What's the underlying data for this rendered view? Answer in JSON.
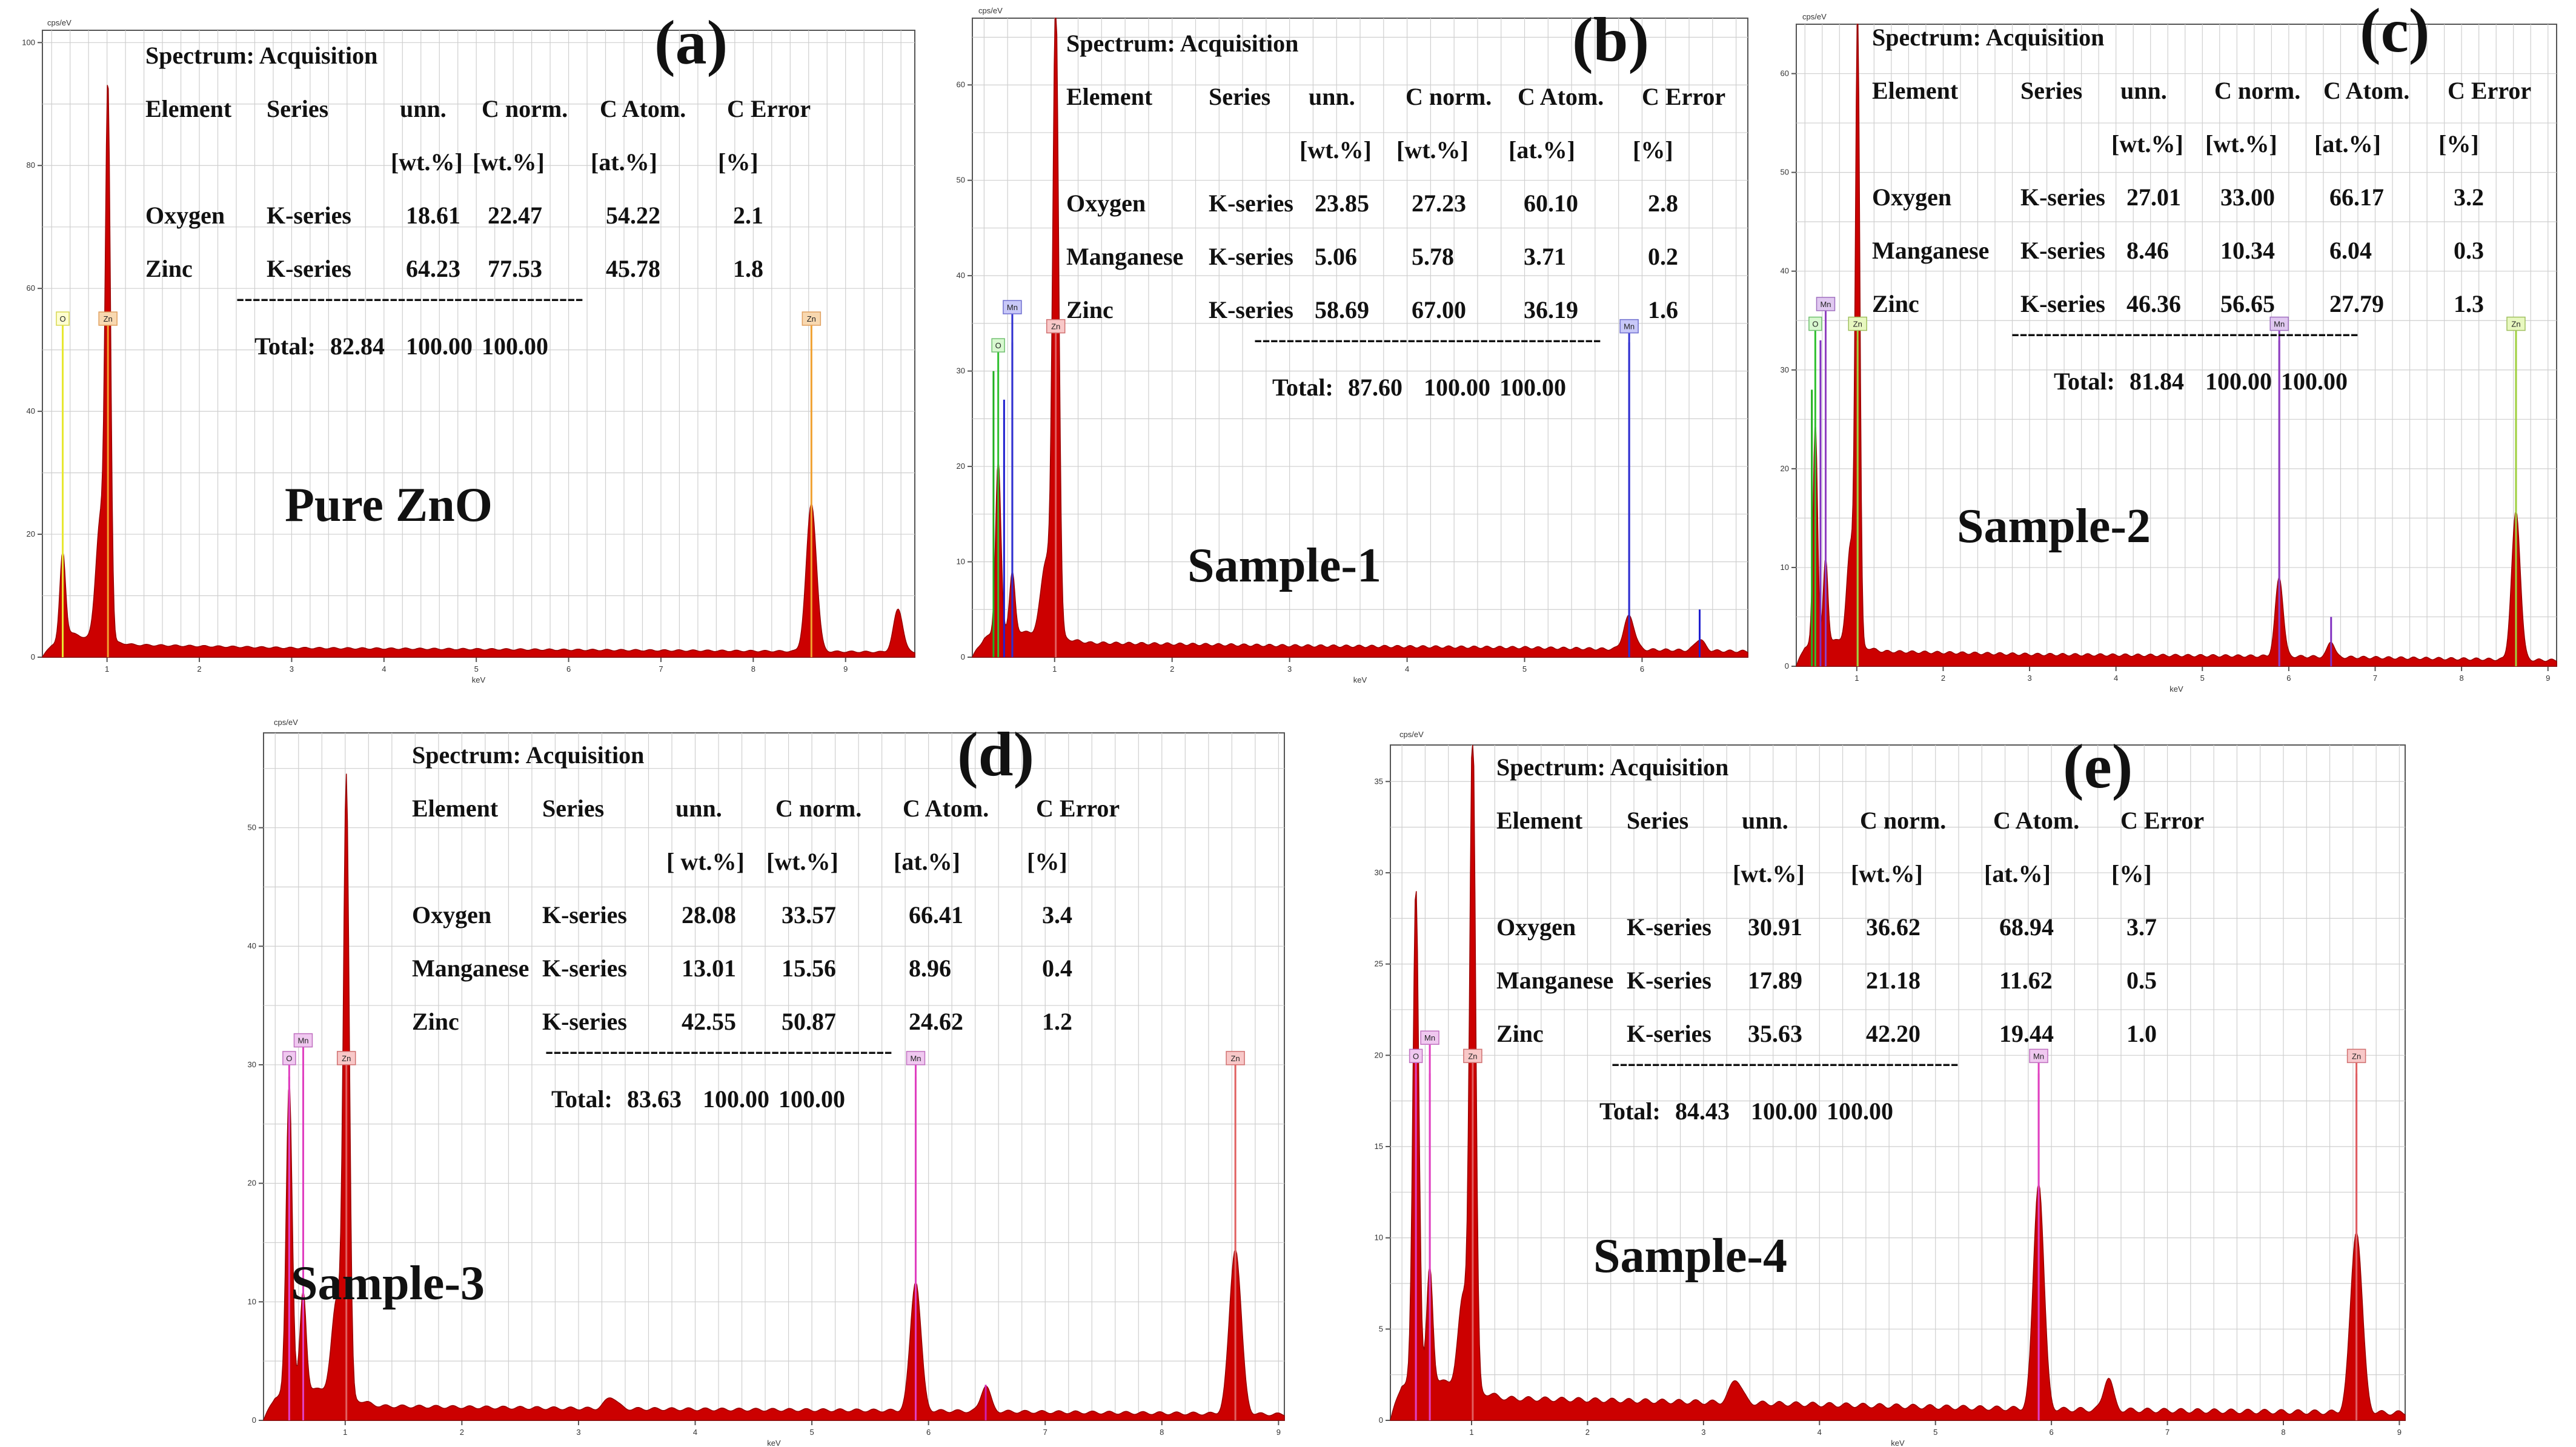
{
  "chart_data": [
    {
      "id": "a",
      "type": "line",
      "panel_label": "(a)",
      "sample_name": "Pure ZnO",
      "y_unit": "cps/eV",
      "xlabel": "keV",
      "xlim": [
        0.3,
        9.75
      ],
      "ylim": [
        0,
        102
      ],
      "x_ticks": [
        1,
        2,
        3,
        4,
        5,
        6,
        7,
        8,
        9
      ],
      "y_ticks": [
        0,
        20,
        40,
        60,
        80,
        100
      ],
      "table": {
        "title": "Spectrum: Acquisition",
        "headers": [
          "Element",
          "Series",
          "unn.",
          "C norm.",
          "C Atom.",
          "C Error"
        ],
        "units": [
          "[wt.%]",
          "[wt.%]",
          "[at.%]",
          "[%]"
        ],
        "rows": [
          [
            "Oxygen",
            "K-series",
            "18.61",
            "22.47",
            "54.22",
            "2.1"
          ],
          [
            "Zinc",
            "K-series",
            "64.23",
            "77.53",
            "45.78",
            "1.8"
          ]
        ],
        "separator": "-------------------------------------------",
        "total_label": "Total:",
        "total_values": [
          "82.84",
          "100.00",
          "100.00"
        ]
      },
      "peaks": [
        {
          "x": 0.52,
          "h": 14,
          "w": 0.03
        },
        {
          "x": 0.93,
          "h": 20,
          "w": 0.05
        },
        {
          "x": 1.01,
          "h": 86,
          "w": 0.028
        },
        {
          "x": 8.63,
          "h": 24,
          "w": 0.055
        },
        {
          "x": 9.57,
          "h": 7,
          "w": 0.05
        }
      ],
      "background": [
        [
          0.3,
          0
        ],
        [
          0.4,
          2
        ],
        [
          0.6,
          4
        ],
        [
          0.8,
          3
        ],
        [
          1.3,
          2
        ],
        [
          3,
          1.5
        ],
        [
          6,
          1.2
        ],
        [
          8,
          1.0
        ],
        [
          9.75,
          0.8
        ]
      ],
      "element_markers": [
        {
          "label": "O",
          "x": 0.52,
          "h": 54,
          "color": "#e8e830",
          "tag_bg": "#ffffd0",
          "tag_border": "#d8d850"
        },
        {
          "label": "Zn",
          "x": 1.01,
          "h": 54,
          "color": "#f0a030",
          "tag_bg": "#f8d8b0",
          "tag_border": "#e0a060"
        },
        {
          "label": "Zn",
          "x": 8.63,
          "h": 54,
          "color": "#f0a030",
          "tag_bg": "#f8d8b0",
          "tag_border": "#e0a060"
        }
      ],
      "lines": []
    },
    {
      "id": "b",
      "type": "line",
      "panel_label": "(b)",
      "sample_name": "Sample-1",
      "y_unit": "cps/eV",
      "xlabel": "keV",
      "xlim": [
        0.3,
        6.9
      ],
      "ylim": [
        0,
        67
      ],
      "x_ticks": [
        1,
        2,
        3,
        4,
        5,
        6
      ],
      "y_ticks": [
        0,
        10,
        20,
        30,
        40,
        50,
        60
      ],
      "table": {
        "title": "Spectrum: Acquisition",
        "headers": [
          "Element",
          "Series",
          "unn.",
          "C norm.",
          "C Atom.",
          "C Error"
        ],
        "units": [
          "[wt.%]",
          "[wt.%]",
          "[at.%]",
          "[%]"
        ],
        "rows": [
          [
            "Oxygen",
            "K-series",
            "23.85",
            "27.23",
            "60.10",
            "2.8"
          ],
          [
            "Manganese",
            "K-series",
            "5.06",
            "5.78",
            "3.71",
            "0.2"
          ],
          [
            "Zinc",
            "K-series",
            "58.69",
            "67.00",
            "36.19",
            "1.6"
          ]
        ],
        "separator": "-------------------------------------------",
        "total_label": "Total:",
        "total_values": [
          "87.60",
          "100.00",
          "100.00"
        ]
      },
      "peaks": [
        {
          "x": 0.52,
          "h": 18,
          "w": 0.022
        },
        {
          "x": 0.64,
          "h": 6,
          "w": 0.022
        },
        {
          "x": 0.93,
          "h": 8,
          "w": 0.045
        },
        {
          "x": 1.01,
          "h": 66,
          "w": 0.025
        },
        {
          "x": 5.89,
          "h": 3.5,
          "w": 0.045
        },
        {
          "x": 6.49,
          "h": 1.2,
          "w": 0.04
        }
      ],
      "background": [
        [
          0.3,
          0
        ],
        [
          0.4,
          2
        ],
        [
          0.6,
          3
        ],
        [
          0.8,
          2.5
        ],
        [
          1.3,
          1.5
        ],
        [
          3,
          1.2
        ],
        [
          5,
          1.0
        ],
        [
          6.9,
          0.6
        ]
      ],
      "element_markers": [
        {
          "label": "O",
          "x": 0.52,
          "h": 32,
          "color": "#30c030",
          "tag_bg": "#d8f8d0",
          "tag_border": "#70c070"
        },
        {
          "label": "Mn",
          "x": 0.64,
          "h": 36,
          "color": "#3030d0",
          "tag_bg": "#c8c8f8",
          "tag_border": "#7070d0"
        },
        {
          "label": "Zn",
          "x": 1.01,
          "h": 34,
          "color": "#e06060",
          "tag_bg": "#f8c8c8",
          "tag_border": "#d07070"
        },
        {
          "label": "Mn",
          "x": 5.89,
          "h": 34,
          "color": "#3030d0",
          "tag_bg": "#c8c8f8",
          "tag_border": "#7070d0"
        }
      ],
      "lines": [
        {
          "x": 0.57,
          "h": 27,
          "color": "#2020d0"
        },
        {
          "x": 0.48,
          "h": 30,
          "color": "#20b020"
        },
        {
          "x": 0.64,
          "h": 33,
          "color": "#2020d0"
        },
        {
          "x": 5.89,
          "h": 33,
          "color": "#2020d0"
        },
        {
          "x": 6.49,
          "h": 5,
          "color": "#2020d0"
        }
      ]
    },
    {
      "id": "c",
      "type": "line",
      "panel_label": "(c)",
      "sample_name": "Sample-2",
      "y_unit": "cps/eV",
      "xlabel": "keV",
      "xlim": [
        0.3,
        9.1
      ],
      "ylim": [
        0,
        65
      ],
      "x_ticks": [
        1,
        2,
        3,
        4,
        5,
        6,
        7,
        8,
        9
      ],
      "y_ticks": [
        0,
        10,
        20,
        30,
        40,
        50,
        60
      ],
      "table": {
        "title": "Spectrum: Acquisition",
        "headers": [
          "Element",
          "Series",
          "unn.",
          "C norm.",
          "C Atom.",
          "C Error"
        ],
        "units": [
          "[wt.%]",
          "[wt.%]",
          "[at.%]",
          "[%]"
        ],
        "rows": [
          [
            "Oxygen",
            "K-series",
            "27.01",
            "33.00",
            "66.17",
            "3.2"
          ],
          [
            "Manganese",
            "K-series",
            "8.46",
            "10.34",
            "6.04",
            "0.3"
          ],
          [
            "Zinc",
            "K-series",
            "46.36",
            "56.65",
            "27.79",
            "1.3"
          ]
        ],
        "separator": "-------------------------------------------",
        "total_label": "Total:",
        "total_values": [
          "81.84",
          "100.00",
          "100.00"
        ]
      },
      "peaks": [
        {
          "x": 0.52,
          "h": 22,
          "w": 0.025
        },
        {
          "x": 0.64,
          "h": 8,
          "w": 0.025
        },
        {
          "x": 0.93,
          "h": 10,
          "w": 0.045
        },
        {
          "x": 1.01,
          "h": 63,
          "w": 0.025
        },
        {
          "x": 5.89,
          "h": 8,
          "w": 0.045
        },
        {
          "x": 6.49,
          "h": 1.6,
          "w": 0.04
        },
        {
          "x": 8.63,
          "h": 15,
          "w": 0.05
        }
      ],
      "background": [
        [
          0.3,
          0
        ],
        [
          0.4,
          2
        ],
        [
          0.6,
          3
        ],
        [
          0.8,
          2.5
        ],
        [
          1.3,
          1.5
        ],
        [
          3,
          1.2
        ],
        [
          6,
          1.0
        ],
        [
          9.1,
          0.6
        ]
      ],
      "element_markers": [
        {
          "label": "O",
          "x": 0.52,
          "h": 34,
          "color": "#30c030",
          "tag_bg": "#d8f8d0",
          "tag_border": "#70c070"
        },
        {
          "label": "Mn",
          "x": 0.64,
          "h": 36,
          "color": "#9040c0",
          "tag_bg": "#e0c8f0",
          "tag_border": "#a070c0"
        },
        {
          "label": "Zn",
          "x": 1.01,
          "h": 34,
          "color": "#a0d040",
          "tag_bg": "#e8f8c0",
          "tag_border": "#a0c060"
        },
        {
          "label": "Mn",
          "x": 5.89,
          "h": 34,
          "color": "#9040c0",
          "tag_bg": "#e0c8f0",
          "tag_border": "#a070c0"
        },
        {
          "label": "Zn",
          "x": 8.63,
          "h": 34,
          "color": "#a0d040",
          "tag_bg": "#e8f8c0",
          "tag_border": "#a0c060"
        }
      ],
      "lines": [
        {
          "x": 0.48,
          "h": 28,
          "color": "#20b020"
        },
        {
          "x": 0.58,
          "h": 33,
          "color": "#8030c0"
        },
        {
          "x": 0.64,
          "h": 26,
          "color": "#8030c0"
        },
        {
          "x": 1.01,
          "h": 33,
          "color": "#90c030"
        },
        {
          "x": 5.89,
          "h": 33,
          "color": "#8030c0"
        },
        {
          "x": 6.49,
          "h": 5,
          "color": "#8030c0"
        },
        {
          "x": 8.63,
          "h": 33,
          "color": "#90c030"
        }
      ]
    },
    {
      "id": "d",
      "type": "line",
      "panel_label": "(d)",
      "sample_name": "Sample-3",
      "y_unit": "cps/eV",
      "xlabel": "keV",
      "xlim": [
        0.3,
        9.05
      ],
      "ylim": [
        0,
        58
      ],
      "x_ticks": [
        1,
        2,
        3,
        4,
        5,
        6,
        7,
        8,
        9
      ],
      "y_ticks": [
        0,
        10,
        20,
        30,
        40,
        50
      ],
      "table": {
        "title": "Spectrum: Acquisition",
        "headers": [
          "Element",
          "Series",
          "unn.",
          "C norm.",
          "C Atom.",
          "C Error"
        ],
        "units": [
          "[ wt.%]",
          "[wt.%]",
          "[at.%]",
          "[%]"
        ],
        "rows": [
          [
            "Oxygen",
            "K-series",
            "28.08",
            "33.57",
            "66.41",
            "3.4"
          ],
          [
            "Manganese",
            "K-series",
            "13.01",
            "15.56",
            "8.96",
            "0.4"
          ],
          [
            "Zinc",
            "K-series",
            "42.55",
            "50.87",
            "24.62",
            "1.2"
          ]
        ],
        "separator": "-------------------------------------------",
        "total_label": "Total:",
        "total_values": [
          "83.63",
          "100.00",
          "100.00"
        ]
      },
      "peaks": [
        {
          "x": 0.52,
          "h": 26,
          "w": 0.025
        },
        {
          "x": 0.64,
          "h": 8,
          "w": 0.025
        },
        {
          "x": 0.93,
          "h": 8,
          "w": 0.045
        },
        {
          "x": 1.01,
          "h": 51,
          "w": 0.025
        },
        {
          "x": 3.28,
          "h": 1.0,
          "w": 0.05
        },
        {
          "x": 5.89,
          "h": 11,
          "w": 0.045
        },
        {
          "x": 6.49,
          "h": 2.2,
          "w": 0.04
        },
        {
          "x": 8.63,
          "h": 14,
          "w": 0.05
        }
      ],
      "background": [
        [
          0.3,
          0
        ],
        [
          0.4,
          2
        ],
        [
          0.6,
          3
        ],
        [
          0.8,
          2.5
        ],
        [
          1.3,
          1.2
        ],
        [
          3,
          1.0
        ],
        [
          6,
          0.8
        ],
        [
          9.05,
          0.5
        ]
      ],
      "element_markers": [
        {
          "label": "O",
          "x": 0.52,
          "h": 30,
          "color": "#e040c0",
          "tag_bg": "#f0c8f0",
          "tag_border": "#c070c0"
        },
        {
          "label": "Mn",
          "x": 0.64,
          "h": 31.5,
          "color": "#e040c0",
          "tag_bg": "#f0c8f0",
          "tag_border": "#c070c0"
        },
        {
          "label": "Zn",
          "x": 1.01,
          "h": 30,
          "color": "#e06060",
          "tag_bg": "#f8c8c8",
          "tag_border": "#d07070"
        },
        {
          "label": "Mn",
          "x": 5.89,
          "h": 30,
          "color": "#e040c0",
          "tag_bg": "#f0c8f0",
          "tag_border": "#c070c0"
        },
        {
          "label": "Zn",
          "x": 8.63,
          "h": 30,
          "color": "#e06060",
          "tag_bg": "#f8c8c8",
          "tag_border": "#d07070"
        }
      ],
      "lines": [
        {
          "x": 0.52,
          "h": 29,
          "color": "#d020b0"
        },
        {
          "x": 0.64,
          "h": 29,
          "color": "#d020b0"
        },
        {
          "x": 5.89,
          "h": 29,
          "color": "#d020b0"
        },
        {
          "x": 6.49,
          "h": 3,
          "color": "#d020b0"
        }
      ]
    },
    {
      "id": "e",
      "type": "line",
      "panel_label": "(e)",
      "sample_name": "Sample-4",
      "y_unit": "cps/eV",
      "xlabel": "keV",
      "xlim": [
        0.3,
        9.05
      ],
      "ylim": [
        0,
        37
      ],
      "x_ticks": [
        1,
        2,
        3,
        4,
        5,
        6,
        7,
        8,
        9
      ],
      "y_ticks": [
        0,
        5,
        10,
        15,
        20,
        25,
        30,
        35
      ],
      "table": {
        "title": "Spectrum: Acquisition",
        "headers": [
          "Element",
          "Series",
          "unn.",
          "C norm.",
          "C Atom.",
          "C Error"
        ],
        "units": [
          "[wt.%]",
          "[wt.%]",
          "[at.%]",
          "[%]"
        ],
        "rows": [
          [
            "Oxygen",
            "K-series",
            "30.91",
            "36.62",
            "68.94",
            "3.7"
          ],
          [
            "Manganese",
            "K-series",
            "17.89",
            "21.18",
            "11.62",
            "0.5"
          ],
          [
            "Zinc",
            "K-series",
            "35.63",
            "42.20",
            "19.44",
            "1.0"
          ]
        ],
        "separator": "-------------------------------------------",
        "total_label": "Total:",
        "total_values": [
          "84.43",
          "100.00",
          "100.00"
        ]
      },
      "peaks": [
        {
          "x": 0.52,
          "h": 27,
          "w": 0.025
        },
        {
          "x": 0.64,
          "h": 6,
          "w": 0.025
        },
        {
          "x": 0.93,
          "h": 5,
          "w": 0.045
        },
        {
          "x": 1.01,
          "h": 36,
          "w": 0.025
        },
        {
          "x": 3.28,
          "h": 1.3,
          "w": 0.05
        },
        {
          "x": 5.89,
          "h": 12.5,
          "w": 0.045
        },
        {
          "x": 6.49,
          "h": 1.8,
          "w": 0.04
        },
        {
          "x": 8.63,
          "h": 10,
          "w": 0.05
        }
      ],
      "background": [
        [
          0.3,
          0
        ],
        [
          0.4,
          2
        ],
        [
          0.6,
          2.5
        ],
        [
          0.8,
          2
        ],
        [
          1.3,
          1.2
        ],
        [
          3,
          1.0
        ],
        [
          6,
          0.6
        ],
        [
          9.05,
          0.4
        ]
      ],
      "element_markers": [
        {
          "label": "O",
          "x": 0.52,
          "h": 19.6,
          "color": "#e040c0",
          "tag_bg": "#f0c8f0",
          "tag_border": "#c070c0"
        },
        {
          "label": "Mn",
          "x": 0.64,
          "h": 20.6,
          "color": "#e040c0",
          "tag_bg": "#f0c8f0",
          "tag_border": "#c070c0"
        },
        {
          "label": "Zn",
          "x": 1.01,
          "h": 19.6,
          "color": "#e06060",
          "tag_bg": "#f8c8c8",
          "tag_border": "#d07070"
        },
        {
          "label": "Mn",
          "x": 5.89,
          "h": 19.6,
          "color": "#e040c0",
          "tag_bg": "#f0c8f0",
          "tag_border": "#c070c0"
        },
        {
          "label": "Zn",
          "x": 8.63,
          "h": 19.6,
          "color": "#e06060",
          "tag_bg": "#f8c8c8",
          "tag_border": "#d07070"
        }
      ],
      "lines": [
        {
          "x": 0.52,
          "h": 19,
          "color": "#d020b0"
        },
        {
          "x": 0.64,
          "h": 19,
          "color": "#d020b0"
        },
        {
          "x": 5.89,
          "h": 19,
          "color": "#d020b0"
        },
        {
          "x": 8.63,
          "h": 19,
          "color": "#d020b0"
        }
      ]
    }
  ],
  "colors": {
    "spectrum_fill": "#cc0000",
    "spectrum_edge": "#990000",
    "grid": "#cfcfcf",
    "frame": "#555555"
  }
}
